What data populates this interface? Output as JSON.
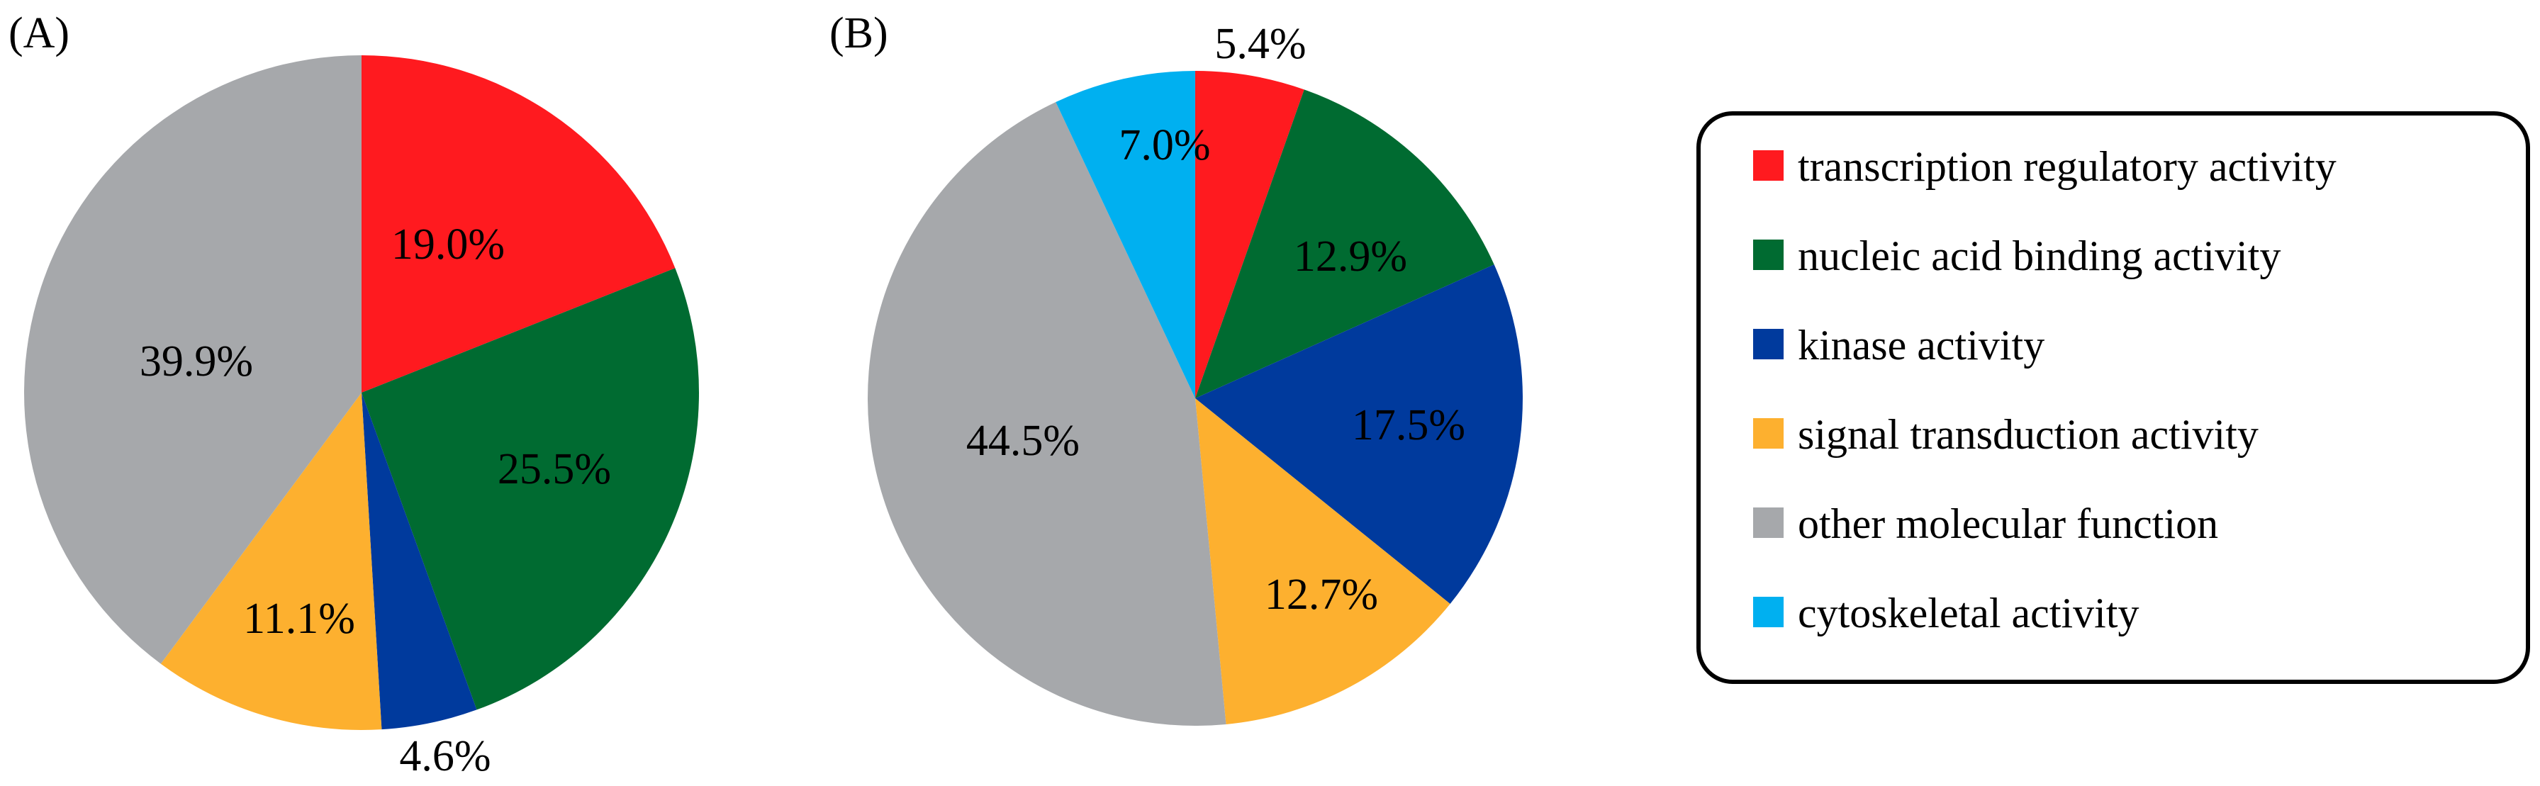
{
  "chart_data": [
    {
      "type": "pie",
      "panel_label": "(A)",
      "start": "12 o'clock",
      "direction": "clockwise",
      "categories": [
        "transcription regulatory activity",
        "nucleic acid binding activity",
        "kinase activity",
        "signal transduction activity",
        "other molecular function",
        "cytoskeletal activity"
      ],
      "values": [
        19.0,
        25.5,
        4.6,
        11.1,
        39.9,
        0
      ],
      "labels": [
        "19.0%",
        "25.5%",
        "4.6%",
        "11.1%",
        "39.9%",
        ""
      ]
    },
    {
      "type": "pie",
      "panel_label": "(B)",
      "start": "12 o'clock",
      "direction": "clockwise",
      "categories": [
        "transcription regulatory activity",
        "nucleic acid binding activity",
        "kinase activity",
        "signal transduction activity",
        "other molecular function",
        "cytoskeletal activity"
      ],
      "values": [
        5.4,
        12.9,
        17.5,
        12.7,
        44.5,
        7.0
      ],
      "labels": [
        "5.4%",
        "12.9%",
        "17.5%",
        "12.7%",
        "44.5%",
        "7.0%"
      ]
    }
  ],
  "legend": {
    "placement": "right",
    "items": [
      {
        "label": "transcription regulatory activity",
        "color": "#ff1a1f"
      },
      {
        "label": "nucleic acid binding activity",
        "color": "#006b31"
      },
      {
        "label": "kinase activity",
        "color": "#003a9d"
      },
      {
        "label": "signal transduction activity",
        "color": "#fdb02f"
      },
      {
        "label": "other molecular function",
        "color": "#a6a8ab"
      },
      {
        "label": "cytoskeletal activity",
        "color": "#00b0f0"
      }
    ]
  },
  "colors": {
    "transcription regulatory activity": "#ff1a1f",
    "nucleic acid binding activity": "#006b31",
    "kinase activity": "#003a9d",
    "signal transduction activity": "#fdb02f",
    "other molecular function": "#a6a8ab",
    "cytoskeletal activity": "#00b0f0"
  }
}
